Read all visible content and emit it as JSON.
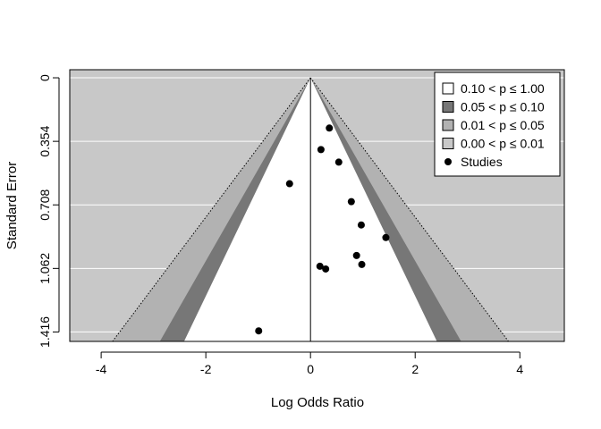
{
  "chart_data": {
    "type": "scatter",
    "subtype": "contour-enhanced funnel plot",
    "title": "",
    "xlabel": "Log Odds Ratio",
    "ylabel": "Standard Error",
    "xlim": [
      -4.6,
      4.85
    ],
    "ylim": [
      1.416,
      0
    ],
    "y_reversed": true,
    "x_ticks": [
      -4,
      -2,
      0,
      2,
      4
    ],
    "y_ticks": [
      0,
      0.354,
      0.708,
      1.062,
      1.416
    ],
    "x_tick_labels": [
      "-4",
      "-2",
      "0",
      "2",
      "4"
    ],
    "y_tick_labels": [
      "0",
      "0.354",
      "0.708",
      "1.062",
      "1.416"
    ],
    "grid": "horizontal",
    "reference_line_x": 0,
    "contours": [
      {
        "label": "0.10 < p ≤ 1.00",
        "z": 1.645,
        "color": "#ffffff"
      },
      {
        "label": "0.05 < p ≤ 0.10",
        "z": 1.96,
        "color": "#777777"
      },
      {
        "label": "0.01 < p ≤ 0.05",
        "z": 2.576,
        "color": "#b2b2b2"
      },
      {
        "label": "0.00 < p ≤ 0.01",
        "z": null,
        "color": "#c8c8c8"
      }
    ],
    "series": [
      {
        "name": "Studies",
        "points": [
          {
            "x": 0.36,
            "y": 0.28
          },
          {
            "x": 0.2,
            "y": 0.4
          },
          {
            "x": 0.54,
            "y": 0.47
          },
          {
            "x": -0.4,
            "y": 0.59
          },
          {
            "x": 0.78,
            "y": 0.69
          },
          {
            "x": 0.97,
            "y": 0.82
          },
          {
            "x": 1.44,
            "y": 0.89
          },
          {
            "x": 0.88,
            "y": 0.99
          },
          {
            "x": 0.18,
            "y": 1.05
          },
          {
            "x": 0.29,
            "y": 1.065
          },
          {
            "x": 0.98,
            "y": 1.04
          },
          {
            "x": -0.99,
            "y": 1.41
          }
        ]
      }
    ],
    "legend": {
      "position": "top-right",
      "entries": [
        "0.10 < p ≤ 1.00",
        "0.05 < p ≤ 0.10",
        "0.01 < p ≤ 0.05",
        "0.00 < p ≤ 0.01",
        "Studies"
      ]
    },
    "colors": {
      "background": "#c8c8c8",
      "gridline": "#ffffff",
      "point": "#000000"
    }
  }
}
